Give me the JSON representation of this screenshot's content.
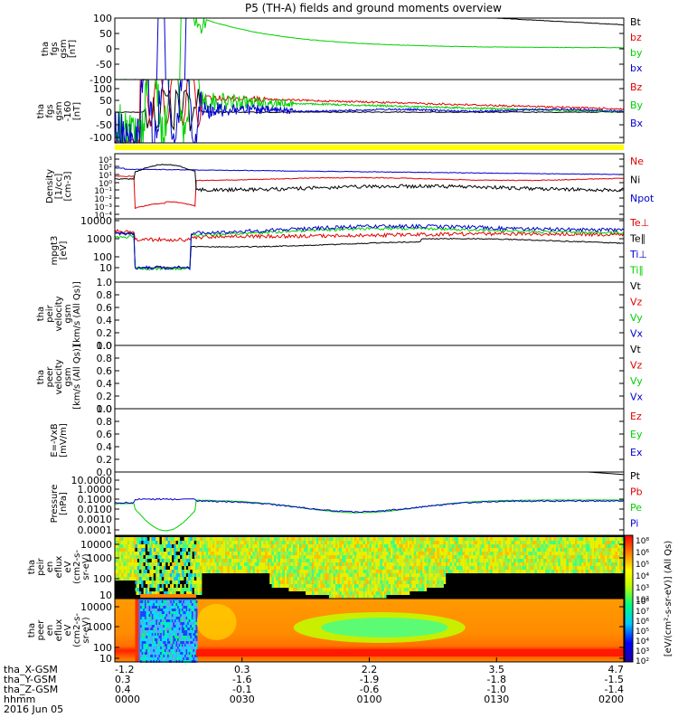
{
  "title": "P5 (TH-A) fields and ground moments overview",
  "colors": {
    "black": "#000000",
    "red": "#e00000",
    "green": "#00d000",
    "blue": "#0000d0",
    "yellow": "#ffff00",
    "panel_frame": "#000000"
  },
  "chart_data": [
    {
      "type": "line",
      "id": "fgs",
      "ylabel": [
        "tha",
        "fgs",
        "gsm",
        "[nT]"
      ],
      "ylim": [
        -100,
        100
      ],
      "yticks": [
        "100",
        "50",
        "0",
        "-50",
        "-100"
      ],
      "series": [
        {
          "name": "Bt",
          "color": "#000000"
        },
        {
          "name": "bz",
          "color": "#e00000"
        },
        {
          "name": "by",
          "color": "#00d000"
        },
        {
          "name": "bx",
          "color": "#0000d0"
        }
      ]
    },
    {
      "type": "line",
      "id": "fgs_dsl",
      "ylabel": [
        "tha",
        "fgs",
        "gsm",
        "-160",
        "[nT]"
      ],
      "ylim": [
        -120,
        120
      ],
      "yticks": [
        "100",
        "50",
        "0",
        "-50",
        "-100"
      ],
      "series": [
        {
          "name": "Bz",
          "color": "#e00000"
        },
        {
          "name": "By",
          "color": "#00d000"
        },
        {
          "name": "Bx",
          "color": "#0000d0"
        }
      ]
    },
    {
      "type": "line",
      "id": "density",
      "ylabel": [
        "Density",
        "[1/cc]",
        "[cm-3]"
      ],
      "yscale": "log",
      "yticks": [
        "10³",
        "10²",
        "10¹",
        "10⁰",
        "10⁻¹",
        "10⁻²",
        "10⁻³",
        "10⁻⁴"
      ],
      "series": [
        {
          "name": "Ne",
          "color": "#e00000"
        },
        {
          "name": "Ni",
          "color": "#000000"
        },
        {
          "name": "Npot",
          "color": "#0000d0"
        }
      ]
    },
    {
      "type": "line",
      "id": "temperature",
      "ylabel": [
        "mpgt3",
        "[eV]"
      ],
      "yscale": "log",
      "yticks": [
        "10000",
        "1000",
        "100",
        "10"
      ],
      "series": [
        {
          "name": "Te⊥",
          "color": "#e00000"
        },
        {
          "name": "Te∥",
          "color": "#000000"
        },
        {
          "name": "Ti⊥",
          "color": "#0000d0"
        },
        {
          "name": "Ti∥",
          "color": "#00d000"
        }
      ]
    },
    {
      "type": "line",
      "id": "peir_vel",
      "ylabel": [
        "tha",
        "peir",
        "velocity",
        "gsm",
        "[km/s (All Qs)]"
      ],
      "ylim": [
        0,
        1
      ],
      "yticks": [
        "1.0",
        "0.8",
        "0.6",
        "0.4",
        "0.2",
        "0.0"
      ],
      "series": [
        {
          "name": "Vt",
          "color": "#000000"
        },
        {
          "name": "Vz",
          "color": "#e00000"
        },
        {
          "name": "Vy",
          "color": "#00d000"
        },
        {
          "name": "Vx",
          "color": "#0000d0"
        }
      ]
    },
    {
      "type": "line",
      "id": "peer_vel",
      "ylabel": [
        "tha",
        "peer",
        "velocity",
        "gsm",
        "[km/s (All Qs)]"
      ],
      "ylim": [
        0,
        1
      ],
      "yticks": [
        "1.0",
        "0.8",
        "0.6",
        "0.4",
        "0.2",
        "0.0"
      ],
      "series": [
        {
          "name": "Vt",
          "color": "#000000"
        },
        {
          "name": "Vz",
          "color": "#e00000"
        },
        {
          "name": "Vy",
          "color": "#00d000"
        },
        {
          "name": "Vx",
          "color": "#0000d0"
        }
      ]
    },
    {
      "type": "line",
      "id": "efield",
      "ylabel": [
        "E=-VxB",
        "[mV/m]"
      ],
      "ylim": [
        0,
        1
      ],
      "yticks": [
        "1.0",
        "0.8",
        "0.6",
        "0.4",
        "0.2",
        "0.0"
      ],
      "series": [
        {
          "name": "Ez",
          "color": "#e00000"
        },
        {
          "name": "Ey",
          "color": "#00d000"
        },
        {
          "name": "Ex",
          "color": "#0000d0"
        }
      ]
    },
    {
      "type": "line",
      "id": "pressure",
      "ylabel": [
        "Pressure",
        "[nPa]"
      ],
      "yscale": "log",
      "yticks": [
        "10.0000",
        "1.0000",
        "0.1000",
        "0.0100",
        "0.0010",
        "0.0001"
      ],
      "series": [
        {
          "name": "Pt",
          "color": "#000000"
        },
        {
          "name": "Pb",
          "color": "#e00000"
        },
        {
          "name": "Pe",
          "color": "#00d000"
        },
        {
          "name": "Pi",
          "color": "#0000d0"
        }
      ]
    },
    {
      "type": "heatmap",
      "id": "peir_en",
      "ylabel": [
        "tha",
        "peir",
        "en",
        "eflux",
        "eV",
        "(cm2-s-",
        "sr-eV)"
      ],
      "yscale": "log",
      "yticks": [
        "10000",
        "1000",
        "100",
        "10"
      ]
    },
    {
      "type": "heatmap",
      "id": "peer_en",
      "ylabel": [
        "tha",
        "peer",
        "en",
        "eflux",
        "eV",
        "(cm2-s-",
        "sr-eV)"
      ],
      "yscale": "log",
      "yticks": [
        "10000",
        "1000",
        "100",
        "10"
      ]
    }
  ],
  "colorbar": {
    "label": "[eV/(cm²-s-sr-eV)] (All Qs)",
    "ticks_top": [
      "10⁸",
      "10⁶",
      "10⁵",
      "10⁴",
      "10³",
      "10²"
    ],
    "ticks_bottom": [
      "10⁸",
      "10⁷",
      "10⁶",
      "10⁵",
      "10⁴",
      "10³",
      "10²"
    ]
  },
  "x_axis": {
    "row_labels": [
      "tha_X-GSM",
      "tha_Y-GSM",
      "tha_Z-GSM",
      "hhmm",
      "2016 Jun 05"
    ],
    "ticks": [
      {
        "x_gsm": "-1.2",
        "y_gsm": "0.3",
        "z_gsm": "0.4",
        "hhmm": "0000"
      },
      {
        "x_gsm": "0.3",
        "y_gsm": "-1.6",
        "z_gsm": "-0.1",
        "hhmm": "0030"
      },
      {
        "x_gsm": "2.2",
        "y_gsm": "-1.9",
        "z_gsm": "-0.6",
        "hhmm": "0100"
      },
      {
        "x_gsm": "3.5",
        "y_gsm": "-1.8",
        "z_gsm": "-1.0",
        "hhmm": "0130"
      },
      {
        "x_gsm": "4.7",
        "y_gsm": "-1.5",
        "z_gsm": "-1.4",
        "hhmm": "0200"
      }
    ]
  }
}
